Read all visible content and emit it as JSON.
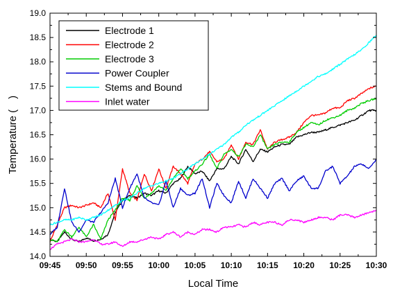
{
  "chart_data": {
    "type": "line",
    "title": "",
    "xlabel": "Local Time",
    "ylabel": "Temperature (　)",
    "x_ticks": [
      "09:45",
      "09:50",
      "09:55",
      "10:00",
      "10:05",
      "10:10",
      "10:15",
      "10:20",
      "10:25",
      "10:30"
    ],
    "x_unit": "minutes since 09:45",
    "xlim": [
      0,
      45
    ],
    "ylim": [
      14.0,
      19.0
    ],
    "y_ticks": [
      "14.0",
      "14.5",
      "15.0",
      "15.5",
      "16.0",
      "16.5",
      "17.0",
      "17.5",
      "18.0",
      "18.5",
      "19.0"
    ],
    "grid": false,
    "legend_position": "top-left",
    "series": [
      {
        "name": "Electrode 1",
        "color": "#000000",
        "x": [
          0,
          1,
          2,
          3,
          4,
          5,
          6,
          7,
          8,
          9,
          10,
          11,
          12,
          13,
          14,
          15,
          16,
          17,
          18,
          19,
          20,
          21,
          22,
          23,
          24,
          25,
          26,
          27,
          28,
          29,
          30,
          31,
          32,
          33,
          34,
          35,
          36,
          37,
          38,
          39,
          40,
          41,
          42,
          43,
          44,
          45
        ],
        "y": [
          14.35,
          14.3,
          14.5,
          14.35,
          14.3,
          14.38,
          14.32,
          14.35,
          14.45,
          14.9,
          15.15,
          15.25,
          15.2,
          15.3,
          15.25,
          15.35,
          15.3,
          15.5,
          15.6,
          15.85,
          15.7,
          15.75,
          15.55,
          15.8,
          15.8,
          16.05,
          15.9,
          16.2,
          15.95,
          16.2,
          16.15,
          16.25,
          16.3,
          16.3,
          16.45,
          16.5,
          16.55,
          16.55,
          16.6,
          16.65,
          16.7,
          16.75,
          16.8,
          16.9,
          17.0,
          17.0
        ]
      },
      {
        "name": "Electrode 2",
        "color": "#ff0000",
        "x": [
          0,
          1,
          2,
          3,
          4,
          5,
          6,
          7,
          8,
          9,
          10,
          11,
          12,
          13,
          14,
          15,
          16,
          17,
          18,
          19,
          20,
          21,
          22,
          23,
          24,
          25,
          26,
          27,
          28,
          29,
          30,
          31,
          32,
          33,
          34,
          35,
          36,
          37,
          38,
          39,
          40,
          41,
          42,
          43,
          44,
          45
        ],
        "y": [
          14.3,
          14.65,
          15.0,
          15.05,
          15.0,
          15.05,
          15.1,
          15.0,
          15.3,
          14.75,
          15.8,
          15.3,
          15.15,
          15.7,
          15.35,
          15.8,
          15.4,
          15.85,
          15.7,
          15.5,
          15.9,
          16.0,
          16.15,
          15.95,
          16.0,
          16.3,
          16.0,
          16.35,
          16.3,
          16.6,
          16.2,
          16.35,
          16.4,
          16.45,
          16.55,
          16.75,
          16.9,
          16.9,
          16.95,
          17.05,
          17.05,
          17.2,
          17.25,
          17.35,
          17.45,
          17.5
        ]
      },
      {
        "name": "Electrode 3",
        "color": "#00cc00",
        "x": [
          0,
          1,
          2,
          3,
          4,
          5,
          6,
          7,
          8,
          9,
          10,
          11,
          12,
          13,
          14,
          15,
          16,
          17,
          18,
          19,
          20,
          21,
          22,
          23,
          24,
          25,
          26,
          27,
          28,
          29,
          30,
          31,
          32,
          33,
          34,
          35,
          36,
          37,
          38,
          39,
          40,
          41,
          42,
          43,
          44,
          45
        ],
        "y": [
          14.35,
          14.3,
          14.55,
          14.4,
          14.6,
          14.4,
          14.65,
          14.35,
          14.75,
          14.95,
          15.2,
          15.15,
          15.45,
          15.2,
          15.3,
          15.45,
          15.35,
          15.6,
          15.8,
          15.6,
          15.75,
          15.9,
          16.1,
          15.8,
          16.1,
          16.2,
          16.05,
          16.3,
          16.25,
          16.5,
          16.2,
          16.3,
          16.35,
          16.35,
          16.55,
          16.65,
          16.75,
          16.7,
          16.8,
          16.85,
          16.9,
          17.0,
          17.05,
          17.15,
          17.2,
          17.25
        ]
      },
      {
        "name": "Power Coupler",
        "color": "#0000cc",
        "x": [
          0,
          1,
          2,
          3,
          4,
          5,
          6,
          7,
          8,
          9,
          10,
          11,
          12,
          13,
          14,
          15,
          16,
          17,
          18,
          19,
          20,
          21,
          22,
          23,
          24,
          25,
          26,
          27,
          28,
          29,
          30,
          31,
          32,
          33,
          34,
          35,
          36,
          37,
          38,
          39,
          40,
          41,
          42,
          43,
          44,
          45
        ],
        "y": [
          14.45,
          14.6,
          15.4,
          14.7,
          14.5,
          14.75,
          14.7,
          14.9,
          15.1,
          15.6,
          15.0,
          15.4,
          15.7,
          15.2,
          15.1,
          15.05,
          15.55,
          15.0,
          15.4,
          15.25,
          15.3,
          15.6,
          15.0,
          15.5,
          15.25,
          15.1,
          15.55,
          15.2,
          15.6,
          15.4,
          15.2,
          15.5,
          15.6,
          15.35,
          15.55,
          15.65,
          15.4,
          15.4,
          15.75,
          15.85,
          15.5,
          15.65,
          15.85,
          15.9,
          15.8,
          16.0
        ]
      },
      {
        "name": "Stems and Bound",
        "color": "#00ffff",
        "x": [
          0,
          1,
          2,
          3,
          4,
          5,
          6,
          7,
          8,
          9,
          10,
          11,
          12,
          13,
          14,
          15,
          16,
          17,
          18,
          19,
          20,
          21,
          22,
          23,
          24,
          25,
          26,
          27,
          28,
          29,
          30,
          31,
          32,
          33,
          34,
          35,
          36,
          37,
          38,
          39,
          40,
          41,
          42,
          43,
          44,
          45
        ],
        "y": [
          14.65,
          14.7,
          14.75,
          14.75,
          14.8,
          14.75,
          14.8,
          14.85,
          14.95,
          15.05,
          15.15,
          15.2,
          15.3,
          15.4,
          15.45,
          15.5,
          15.55,
          15.6,
          15.7,
          15.8,
          15.9,
          16.0,
          16.1,
          16.2,
          16.3,
          16.45,
          16.55,
          16.7,
          16.8,
          16.9,
          17.0,
          17.1,
          17.2,
          17.3,
          17.4,
          17.5,
          17.6,
          17.7,
          17.75,
          17.85,
          17.95,
          18.05,
          18.15,
          18.25,
          18.4,
          18.55
        ]
      },
      {
        "name": "Inlet water",
        "color": "#ff00ff",
        "x": [
          0,
          1,
          2,
          3,
          4,
          5,
          6,
          7,
          8,
          9,
          10,
          11,
          12,
          13,
          14,
          15,
          16,
          17,
          18,
          19,
          20,
          21,
          22,
          23,
          24,
          25,
          26,
          27,
          28,
          29,
          30,
          31,
          32,
          33,
          34,
          35,
          36,
          37,
          38,
          39,
          40,
          41,
          42,
          43,
          44,
          45
        ],
        "y": [
          14.15,
          14.25,
          14.3,
          14.35,
          14.3,
          14.3,
          14.35,
          14.25,
          14.25,
          14.3,
          14.2,
          14.3,
          14.3,
          14.35,
          14.4,
          14.35,
          14.45,
          14.5,
          14.4,
          14.5,
          14.45,
          14.55,
          14.55,
          14.5,
          14.6,
          14.6,
          14.65,
          14.6,
          14.7,
          14.65,
          14.7,
          14.7,
          14.65,
          14.75,
          14.75,
          14.7,
          14.75,
          14.8,
          14.8,
          14.75,
          14.85,
          14.85,
          14.8,
          14.85,
          14.9,
          14.95
        ]
      }
    ]
  }
}
